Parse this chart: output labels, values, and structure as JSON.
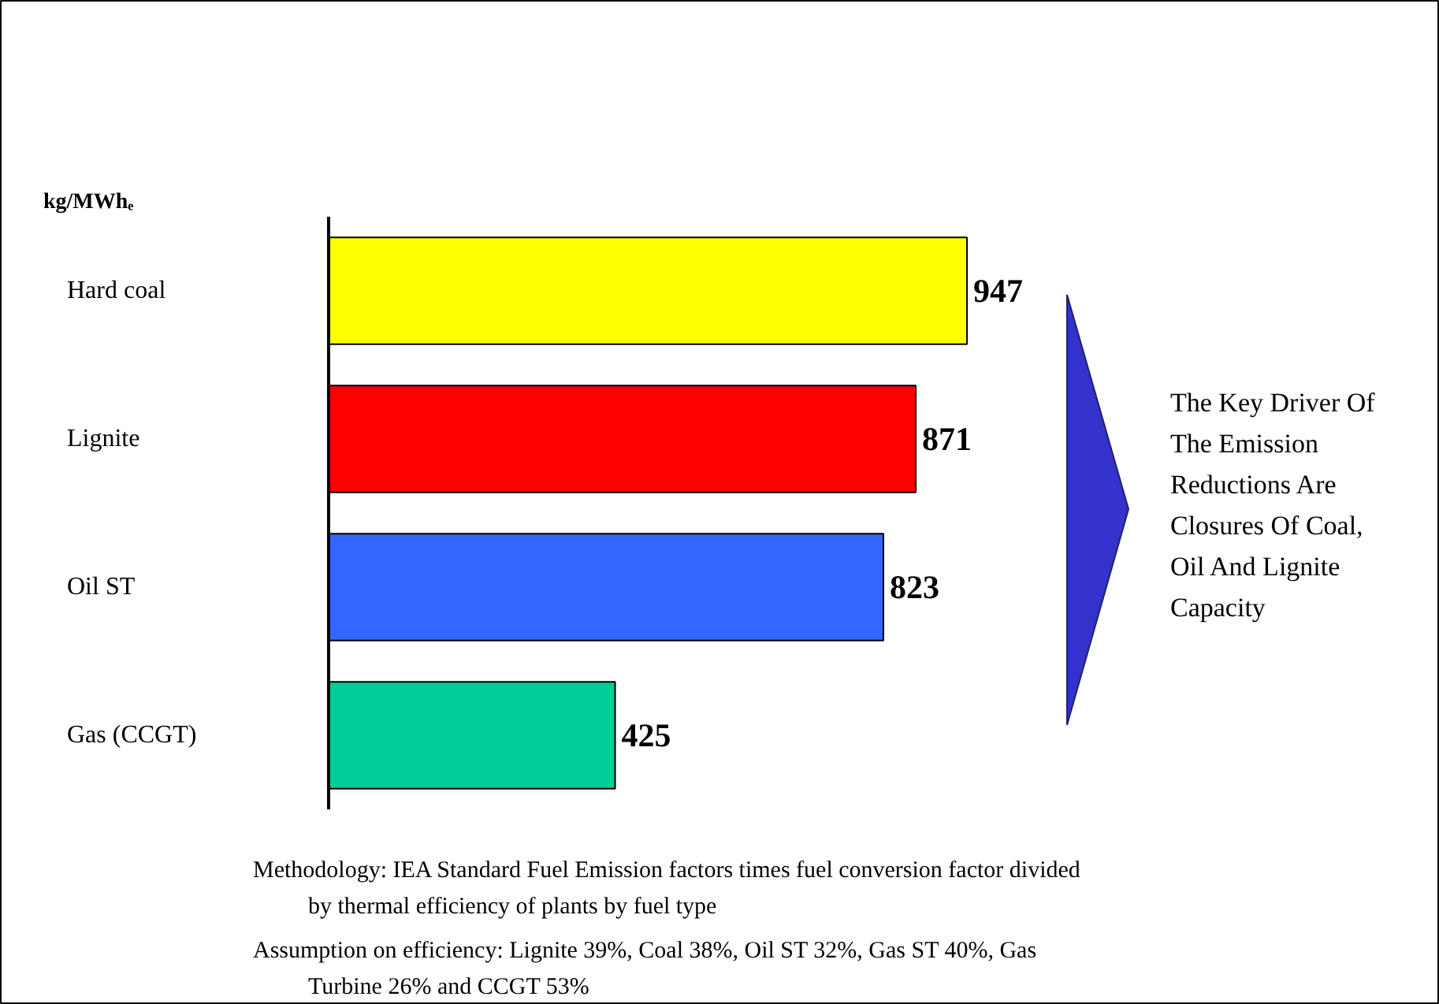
{
  "chart_data": {
    "type": "bar",
    "orientation": "horizontal",
    "ylabel": "kg/MWhₑ",
    "categories": [
      "Hard coal",
      "Lignite",
      "Oil ST",
      "Gas (CCGT)"
    ],
    "values": [
      947,
      871,
      823,
      425
    ],
    "colors": [
      "#ffff00",
      "#ff0000",
      "#3366ff",
      "#00cc99"
    ],
    "data_labels": true,
    "annotations": [
      "The Key Driver Of The Emission Reductions Are Closures Of Coal, Oil And Lignite Capacity",
      "Methodology: IEA Standard Fuel Emission factors times fuel conversion factor divided by thermal efficiency of plants by fuel type",
      "Assumption on efficiency:  Lignite 39%, Coal 38%, Oil ST 32%, Gas ST 40%, Gas Turbine 26% and CCGT 53%"
    ]
  }
}
